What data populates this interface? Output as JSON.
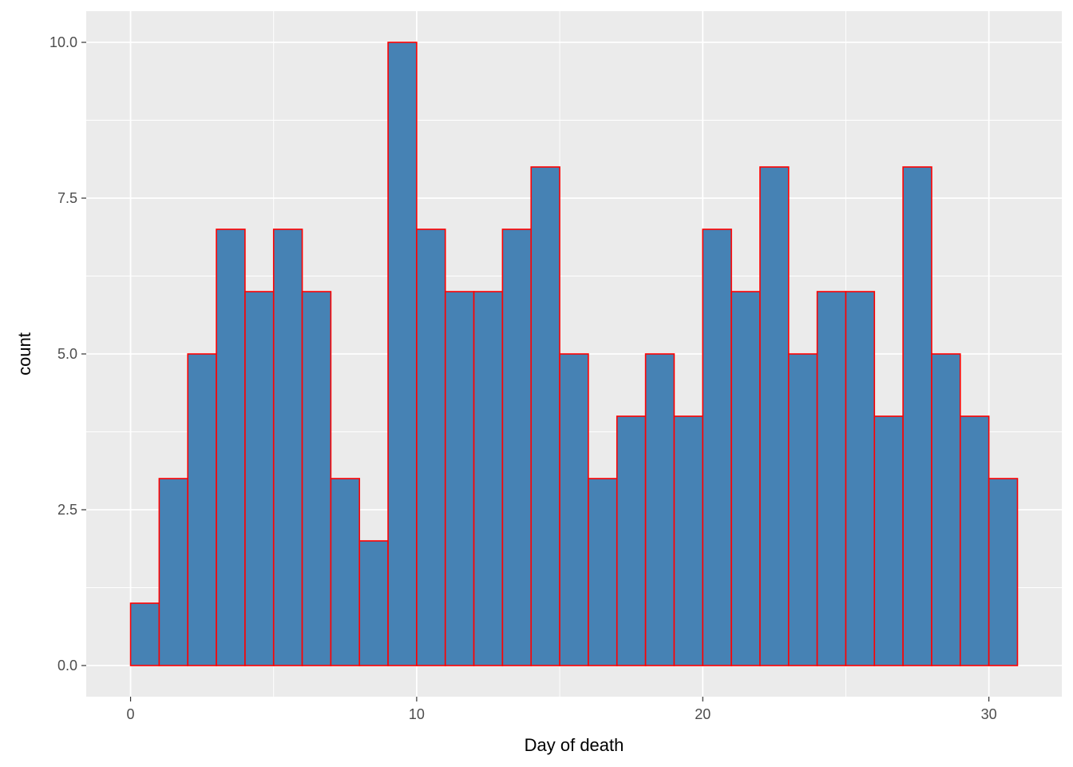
{
  "chart_data": {
    "type": "bar",
    "subtype": "histogram",
    "xlabel": "Day of death",
    "ylabel": "count",
    "xlim": [
      -1.55,
      32.55
    ],
    "ylim": [
      -0.5,
      10.5
    ],
    "x_ticks": [
      0,
      10,
      20,
      30
    ],
    "x_tick_labels": [
      "0",
      "10",
      "20",
      "30"
    ],
    "y_ticks": [
      0,
      2.5,
      5,
      7.5,
      10
    ],
    "y_tick_labels": [
      "0.0",
      "2.5",
      "5.0",
      "7.5",
      "10.0"
    ],
    "bin_width": 1,
    "bin_starts": [
      0,
      1,
      2,
      3,
      4,
      5,
      6,
      7,
      8,
      9,
      10,
      11,
      12,
      13,
      14,
      15,
      16,
      17,
      18,
      19,
      20,
      21,
      22,
      23,
      24,
      25,
      26,
      27,
      28,
      29,
      30
    ],
    "values": [
      1,
      3,
      5,
      7,
      6,
      7,
      6,
      3,
      2,
      10,
      7,
      6,
      6,
      7,
      8,
      5,
      3,
      4,
      5,
      4,
      7,
      6,
      8,
      5,
      6,
      6,
      4,
      8,
      5,
      4,
      3
    ],
    "grid": true,
    "legend": "none",
    "colors": {
      "bar_fill": "#4682b4",
      "bar_outline": "#ff0000",
      "panel_background": "#ebebeb",
      "grid": "#ffffff"
    }
  }
}
